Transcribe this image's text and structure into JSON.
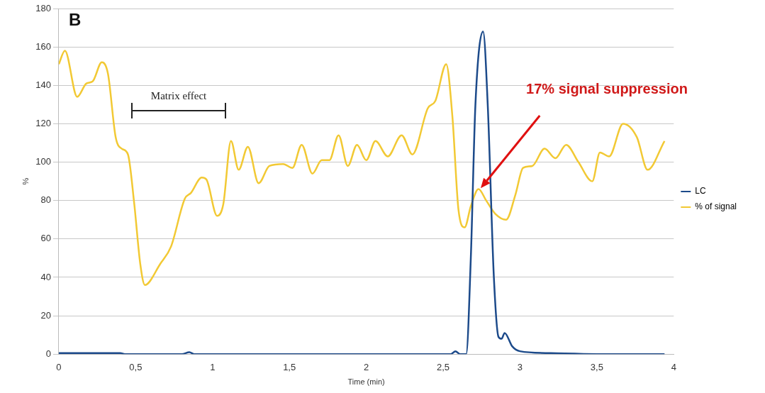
{
  "chart_data": {
    "type": "line",
    "xlabel": "Time (min)",
    "ylabel": "%",
    "xlim": [
      0,
      4
    ],
    "xticks": [
      0,
      {
        "value": 0.5,
        "label": "0,5"
      },
      1,
      {
        "value": 1.5,
        "label": "1,5"
      },
      2,
      {
        "value": 2.5,
        "label": "2,5"
      },
      3,
      {
        "value": 3.5,
        "label": "3,5"
      },
      4
    ],
    "ylim": [
      0,
      180
    ],
    "yticks": [
      0,
      20,
      40,
      60,
      80,
      100,
      120,
      140,
      160,
      180
    ],
    "grid": "y",
    "legend": "right",
    "marker": "none",
    "line_style": "solid",
    "annotations": [
      "B",
      "Matrix effect",
      "17% signal suppression"
    ],
    "series": [
      {
        "name": "LC",
        "color": "#1c4a8a",
        "x": [
          0,
          0.4,
          0.43,
          0.8,
          0.85,
          0.88,
          2.55,
          2.58,
          2.61,
          2.65,
          2.68,
          2.71,
          2.76,
          2.79,
          2.83,
          2.86,
          2.88,
          2.9,
          2.95,
          3.0,
          3.2,
          3.5,
          3.94
        ],
        "values": [
          0.5,
          0.5,
          0,
          0,
          1,
          0,
          0,
          1.5,
          0,
          0,
          50,
          130,
          168,
          130,
          40,
          9,
          8,
          11,
          4,
          1.5,
          0.5,
          0,
          0
        ]
      },
      {
        "name": "% of signal",
        "color": "#f2c934",
        "x": [
          0,
          0.04,
          0.12,
          0.18,
          0.22,
          0.28,
          0.32,
          0.37,
          0.41,
          0.45,
          0.49,
          0.53,
          0.56,
          0.66,
          0.73,
          0.82,
          0.86,
          0.93,
          0.96,
          1.03,
          1.07,
          1.12,
          1.17,
          1.23,
          1.3,
          1.37,
          1.46,
          1.52,
          1.58,
          1.65,
          1.71,
          1.76,
          1.82,
          1.88,
          1.94,
          2.0,
          2.06,
          2.14,
          2.23,
          2.3,
          2.4,
          2.45,
          2.52,
          2.56,
          2.6,
          2.64,
          2.68,
          2.73,
          2.78,
          2.84,
          2.91,
          2.97,
          3.02,
          3.08,
          3.16,
          3.23,
          3.3,
          3.38,
          3.47,
          3.52,
          3.58,
          3.67,
          3.76,
          3.83,
          3.94
        ],
        "values": [
          151,
          158,
          134,
          141,
          142,
          152,
          146,
          113,
          107,
          104,
          79,
          47,
          36,
          47,
          56,
          81,
          84,
          92,
          91,
          72,
          78,
          111,
          96,
          108,
          89,
          98,
          99,
          97,
          109,
          94,
          101,
          101,
          114,
          98,
          109,
          101,
          111,
          103,
          114,
          104,
          128,
          132,
          151,
          124,
          75,
          66,
          77,
          86,
          80,
          73,
          70,
          83,
          97,
          98,
          107,
          102,
          109,
          100,
          90,
          105,
          103,
          120,
          113,
          96,
          111
        ]
      }
    ]
  }
}
